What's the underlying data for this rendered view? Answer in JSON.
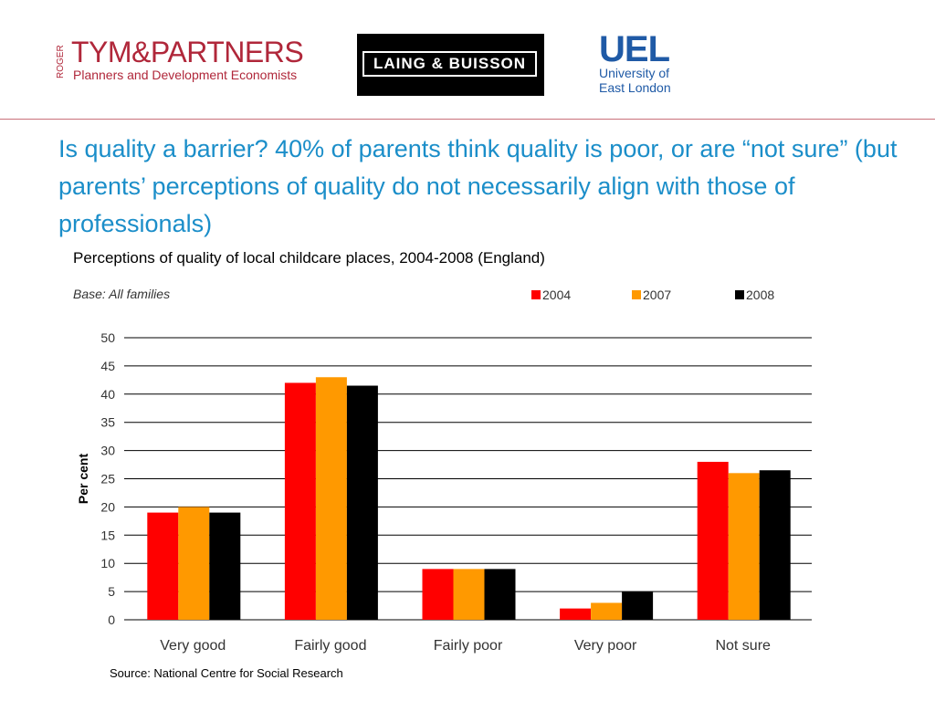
{
  "logos": {
    "tym_prefix": "ROGER",
    "tym_name": "TYM&PARTNERS",
    "tym_tagline": "Planners and Development Economists",
    "laing_buisson": "LAING & BUISSON",
    "uel_abbr": "UEL",
    "uel_line1": "University of",
    "uel_line2": "East London"
  },
  "headline": "Is quality a barrier? 40% of parents think quality is poor, or are “not sure” (but parents’ perceptions of quality do not necessarily align with those of professionals)",
  "footer": {
    "source": "Source: National Centre for Social Research"
  },
  "colors": {
    "headline": "#1b8ec9",
    "brand_red": "#b0273a",
    "uel_blue": "#1f5aa6",
    "series_2004": "#ff0000",
    "series_2007": "#ff9900",
    "series_2008": "#000000"
  },
  "chart_data": {
    "type": "bar",
    "title": "Perceptions of quality of local childcare places, 2004-2008 (England)",
    "base_note": "Base: All families",
    "ylabel": "Per cent",
    "xlabel": "",
    "ylim": [
      0,
      50
    ],
    "yticks": [
      0,
      5,
      10,
      15,
      20,
      25,
      30,
      35,
      40,
      45,
      50
    ],
    "grid": true,
    "legend_position": "top-right",
    "categories": [
      "Very good",
      "Fairly good",
      "Fairly poor",
      "Very poor",
      "Not sure"
    ],
    "series": [
      {
        "name": "2004",
        "color": "#ff0000",
        "values": [
          19,
          42,
          9,
          2,
          28
        ]
      },
      {
        "name": "2007",
        "color": "#ff9900",
        "values": [
          20,
          43,
          9,
          3,
          26
        ]
      },
      {
        "name": "2008",
        "color": "#000000",
        "values": [
          19,
          41.5,
          9,
          5,
          26.5
        ]
      }
    ]
  }
}
